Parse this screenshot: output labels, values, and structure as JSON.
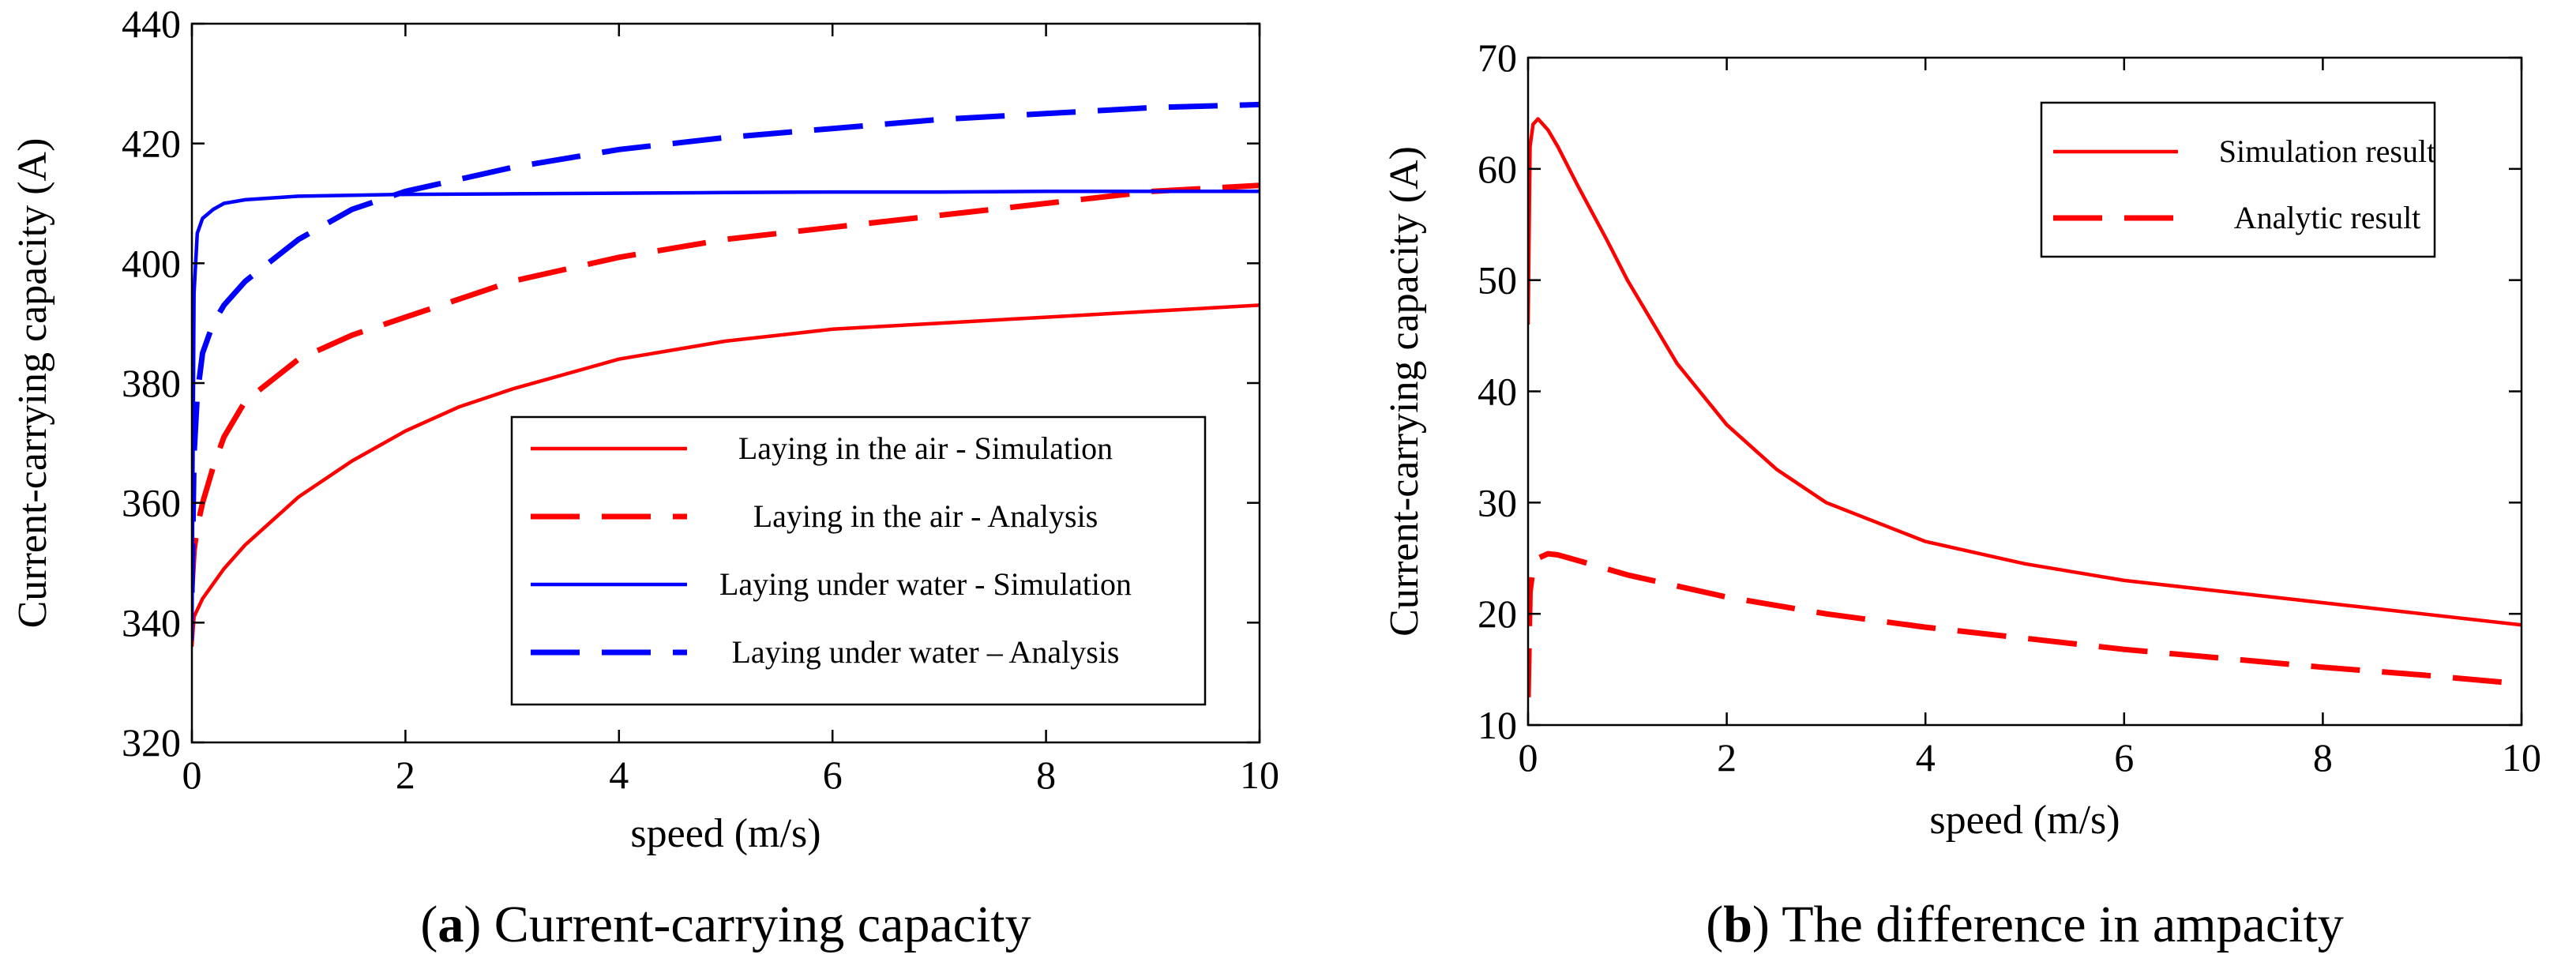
{
  "chart_data": [
    {
      "type": "line",
      "caption_letter": "a",
      "caption_text": "Current-carrying capacity",
      "xlabel": "speed (m/s)",
      "ylabel": "Current-carrying capacity (A)",
      "xlim": [
        0,
        10
      ],
      "ylim": [
        320,
        440
      ],
      "xticks": [
        0,
        2,
        4,
        6,
        8,
        10
      ],
      "yticks": [
        320,
        340,
        360,
        380,
        400,
        420,
        440
      ],
      "grid": false,
      "legend_position": "lower-right",
      "series": [
        {
          "name": "Laying in the air - Simulation",
          "color": "#ff0000",
          "dash": "solid",
          "x": [
            0,
            0.02,
            0.1,
            0.3,
            0.5,
            1,
            1.5,
            2,
            2.5,
            3,
            4,
            5,
            6,
            7,
            8,
            9,
            10
          ],
          "y": [
            336,
            341,
            344,
            349,
            353,
            361,
            367,
            372,
            376,
            379,
            384,
            387,
            389,
            390,
            391,
            392,
            393
          ]
        },
        {
          "name": "Laying in the air - Analysis",
          "color": "#ff0000",
          "dash": "dashed",
          "x": [
            0,
            0.02,
            0.05,
            0.1,
            0.2,
            0.3,
            0.5,
            1,
            1.5,
            2,
            3,
            4,
            5,
            6,
            7,
            8,
            9,
            10
          ],
          "y": [
            346,
            352,
            356,
            360,
            366,
            371,
            377,
            384,
            388,
            391,
            397,
            401,
            404,
            406,
            408,
            410,
            412,
            413
          ]
        },
        {
          "name": "Laying under water - Simulation",
          "color": "#0000ff",
          "dash": "solid",
          "x": [
            0,
            0.02,
            0.05,
            0.1,
            0.2,
            0.3,
            0.5,
            1,
            2,
            3,
            4,
            5,
            6,
            7,
            8,
            9,
            10
          ],
          "y": [
            337,
            395,
            405,
            407.5,
            409,
            410,
            410.6,
            411.2,
            411.5,
            411.6,
            411.7,
            411.8,
            411.9,
            411.9,
            412,
            412,
            412
          ]
        },
        {
          "name": "Laying under water – Analysis",
          "color": "#0000ff",
          "dash": "dashed",
          "x": [
            0,
            0.02,
            0.05,
            0.1,
            0.2,
            0.3,
            0.5,
            1,
            1.5,
            2,
            3,
            4,
            5,
            6,
            7,
            8,
            9,
            10
          ],
          "y": [
            345,
            368,
            378,
            385,
            390,
            393,
            397,
            404,
            409,
            412,
            416,
            419,
            421,
            422.5,
            424,
            425,
            426,
            426.5
          ]
        }
      ]
    },
    {
      "type": "line",
      "caption_letter": "b",
      "caption_text": "The difference in ampacity",
      "xlabel": "speed (m/s)",
      "ylabel": "Current-carrying capacity (A)",
      "xlim": [
        0,
        10
      ],
      "ylim": [
        10,
        70
      ],
      "xticks": [
        0,
        2,
        4,
        6,
        8,
        10
      ],
      "yticks": [
        10,
        20,
        30,
        40,
        50,
        60,
        70
      ],
      "grid": false,
      "legend_position": "top-right",
      "series": [
        {
          "name": "Simulation result",
          "color": "#ff0000",
          "dash": "solid",
          "x": [
            0,
            0.02,
            0.05,
            0.1,
            0.2,
            0.3,
            0.5,
            0.8,
            1,
            1.5,
            2,
            2.5,
            3,
            4,
            5,
            6,
            7,
            8,
            9,
            10
          ],
          "y": [
            46,
            62,
            64,
            64.5,
            63.5,
            62,
            58.5,
            53.5,
            50,
            42.5,
            37,
            33,
            30,
            26.5,
            24.5,
            23,
            22,
            21,
            20,
            19
          ]
        },
        {
          "name": "Analytic result",
          "color": "#ff0000",
          "dash": "dashed",
          "x": [
            0,
            0.02,
            0.05,
            0.1,
            0.2,
            0.3,
            0.5,
            1,
            2,
            3,
            4,
            5,
            6,
            7,
            8,
            9,
            10
          ],
          "y": [
            12.5,
            22,
            24,
            25,
            25.4,
            25.3,
            24.8,
            23.5,
            21.5,
            20,
            18.8,
            17.8,
            16.8,
            16,
            15.2,
            14.5,
            13.7
          ]
        }
      ]
    }
  ]
}
